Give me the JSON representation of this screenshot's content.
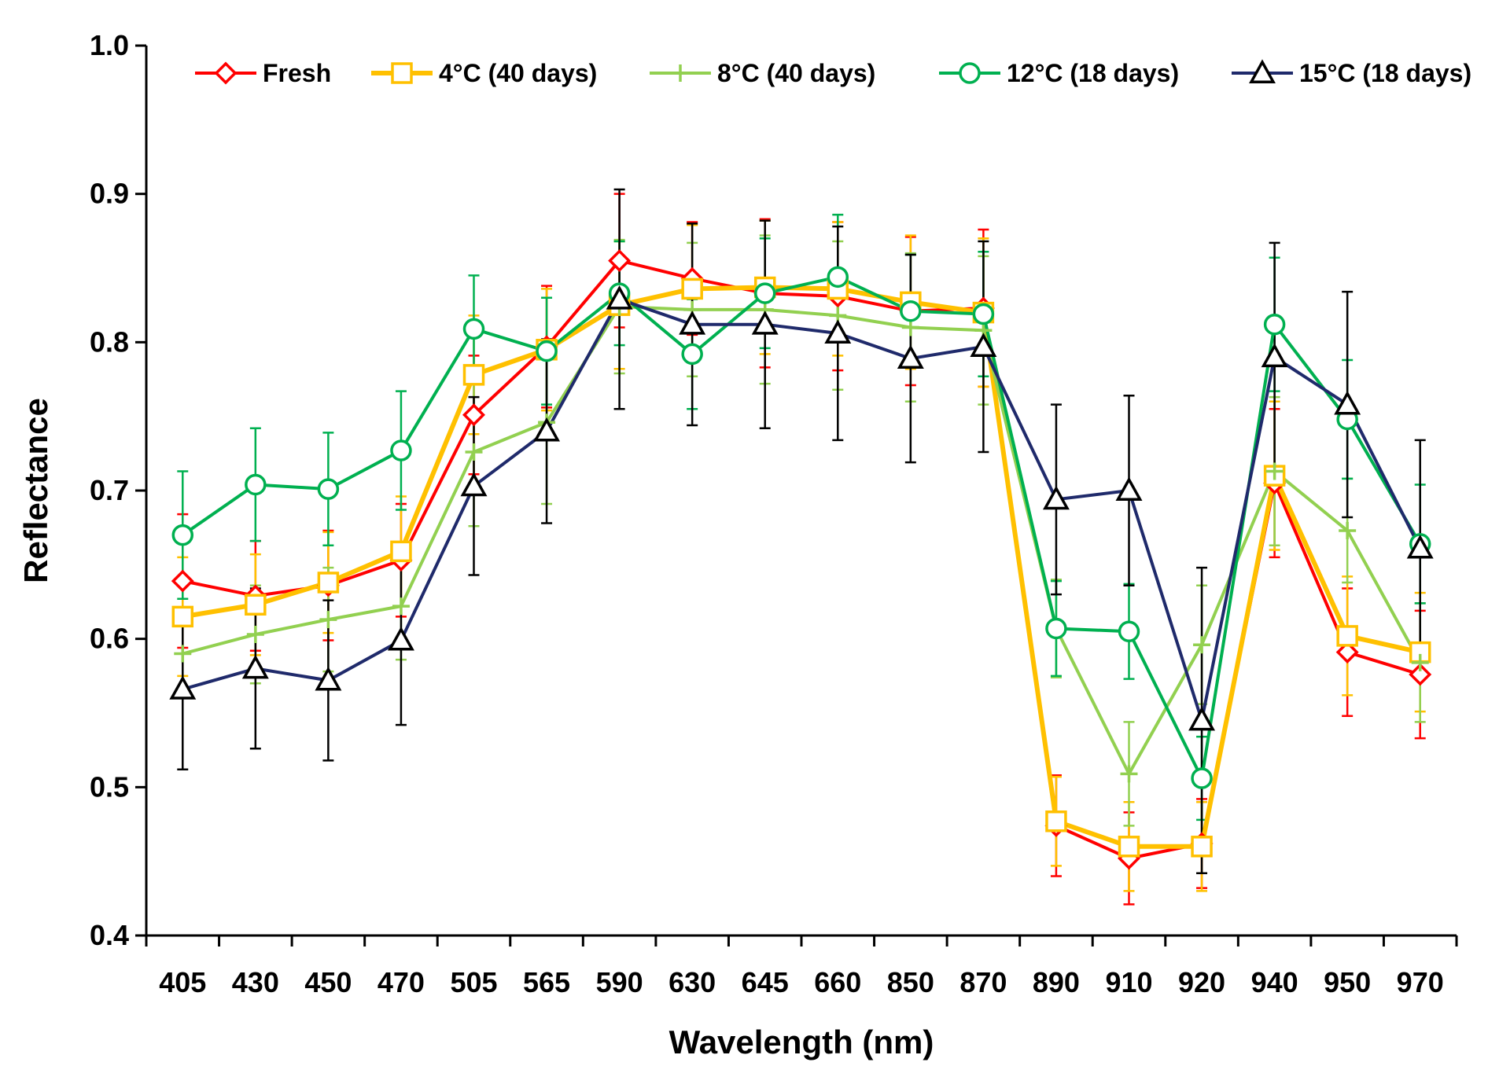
{
  "chart_data": {
    "type": "line",
    "title": "",
    "xlabel": "Wavelength (nm)",
    "ylabel": "Reflectance",
    "ylim": [
      0.4,
      1.0
    ],
    "yticks": [
      "0.4",
      "0.5",
      "0.6",
      "0.7",
      "0.8",
      "0.9",
      "1.0"
    ],
    "categories": [
      "405",
      "430",
      "450",
      "470",
      "505",
      "565",
      "590",
      "630",
      "645",
      "660",
      "850",
      "870",
      "890",
      "910",
      "920",
      "940",
      "950",
      "970"
    ],
    "grid": false,
    "legend_position": "top",
    "series": [
      {
        "name": "Fresh",
        "color": "#ff0000",
        "marker": "diamond",
        "values": [
          0.639,
          0.629,
          0.636,
          0.653,
          0.751,
          0.797,
          0.855,
          0.843,
          0.833,
          0.831,
          0.821,
          0.823,
          0.474,
          0.452,
          0.462,
          0.705,
          0.591,
          0.576
        ],
        "errors": [
          0.045,
          0.037,
          0.037,
          0.038,
          0.04,
          0.041,
          0.045,
          0.038,
          0.05,
          0.05,
          0.05,
          0.053,
          0.034,
          0.031,
          0.03,
          0.05,
          0.043,
          0.043
        ]
      },
      {
        "name": "4°C (40 days)",
        "color": "#ffc000",
        "marker": "square",
        "values": [
          0.615,
          0.623,
          0.638,
          0.659,
          0.778,
          0.795,
          0.825,
          0.836,
          0.837,
          0.836,
          0.827,
          0.82,
          0.477,
          0.46,
          0.46,
          0.71,
          0.602,
          0.591
        ],
        "errors": [
          0.04,
          0.034,
          0.034,
          0.037,
          0.04,
          0.041,
          0.043,
          0.043,
          0.045,
          0.045,
          0.045,
          0.05,
          0.03,
          0.03,
          0.03,
          0.05,
          0.04,
          0.04
        ]
      },
      {
        "name": "8°C (40 days)",
        "color": "#92d050",
        "marker": "plus",
        "values": [
          0.59,
          0.603,
          0.613,
          0.622,
          0.726,
          0.746,
          0.824,
          0.822,
          0.822,
          0.818,
          0.81,
          0.808,
          0.607,
          0.509,
          0.596,
          0.713,
          0.673,
          0.584
        ],
        "errors": [
          0.03,
          0.033,
          0.035,
          0.036,
          0.05,
          0.055,
          0.045,
          0.045,
          0.05,
          0.05,
          0.05,
          0.05,
          0.033,
          0.035,
          0.04,
          0.05,
          0.035,
          0.04
        ]
      },
      {
        "name": "12°C (18 days)",
        "color": "#00b050",
        "marker": "circle",
        "values": [
          0.67,
          0.704,
          0.701,
          0.727,
          0.809,
          0.794,
          0.833,
          0.792,
          0.833,
          0.844,
          0.821,
          0.819,
          0.607,
          0.605,
          0.506,
          0.812,
          0.748,
          0.664
        ],
        "errors": [
          0.043,
          0.038,
          0.038,
          0.04,
          0.036,
          0.036,
          0.035,
          0.037,
          0.037,
          0.042,
          0.038,
          0.042,
          0.032,
          0.032,
          0.028,
          0.045,
          0.04,
          0.04
        ]
      },
      {
        "name": "15°C (18 days)",
        "color": "#1f2a6b",
        "marker": "triangle",
        "values": [
          0.566,
          0.58,
          0.572,
          0.599,
          0.703,
          0.74,
          0.829,
          0.812,
          0.812,
          0.806,
          0.789,
          0.797,
          0.694,
          0.7,
          0.545,
          0.79,
          0.758,
          0.661
        ],
        "errors": [
          0.054,
          0.054,
          0.054,
          0.057,
          0.06,
          0.062,
          0.074,
          0.068,
          0.07,
          0.072,
          0.07,
          0.071,
          0.064,
          0.064,
          0.103,
          0.077,
          0.076,
          0.073
        ]
      }
    ]
  }
}
